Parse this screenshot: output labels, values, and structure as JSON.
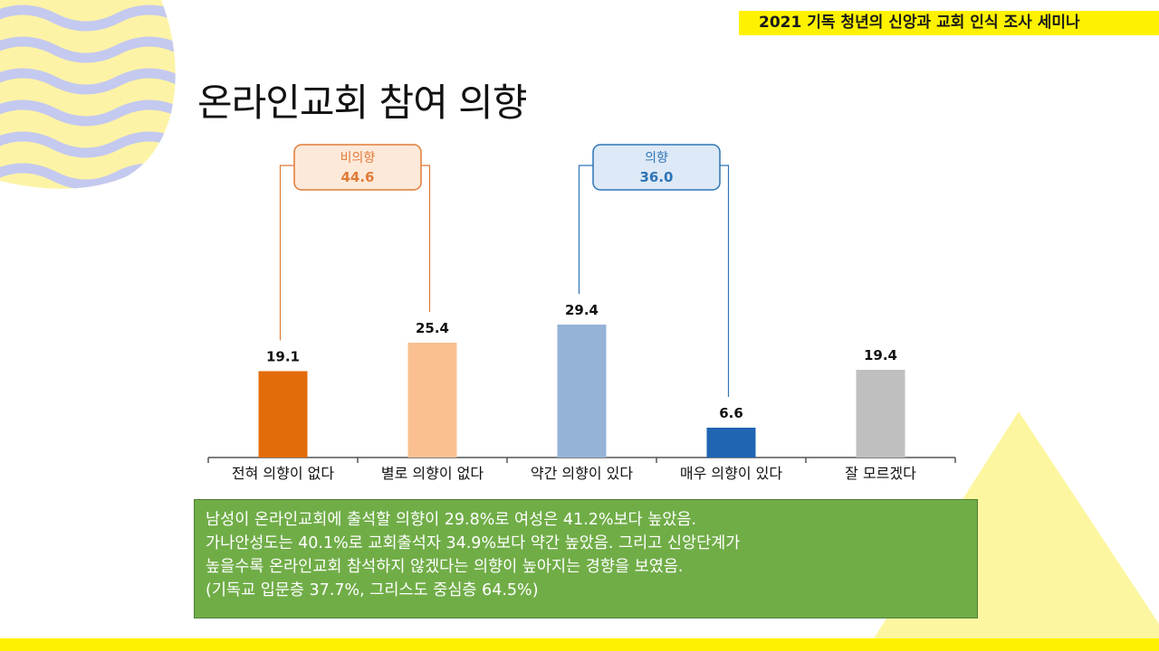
{
  "header": {
    "tag": "2021 기독 청년의 신앙과 교회 인식 조사 세미나"
  },
  "slide": {
    "title": "온라인교회 참여 의향"
  },
  "colors": {
    "accent_yellow": "#fff200",
    "bar_colors": [
      "#e36c0a",
      "#fac090",
      "#95b3d7",
      "#1f65b2",
      "#bfbfbf"
    ],
    "group_nonintent": "#e07b39",
    "group_intent": "#2e75b6",
    "note_bg": "#70ad47"
  },
  "chart_data": {
    "type": "bar",
    "title": "",
    "xlabel": "",
    "ylabel": "",
    "categories": [
      "전혀 의향이 없다",
      "별로 의향이 없다",
      "약간 의향이 있다",
      "매우 의향이 있다",
      "잘 모르겠다"
    ],
    "values": [
      19.1,
      25.4,
      29.4,
      6.6,
      19.4
    ],
    "value_labels": [
      "19.1",
      "25.4",
      "29.4",
      "6.6",
      "19.4"
    ],
    "ylim": [
      0,
      30
    ],
    "grid": false,
    "groups": [
      {
        "label": "비의향",
        "value": "44.6",
        "members": [
          0,
          1
        ]
      },
      {
        "label": "의향",
        "value": "36.0",
        "members": [
          2,
          3
        ]
      }
    ]
  },
  "note": {
    "lines": [
      "남성이 온라인교회에 출석할 의향이 29.8%로 여성은 41.2%보다 높았음.",
      "가나안성도는 40.1%로 교회출석자 34.9%보다 약간 높았음. 그리고 신앙단계가",
      "높을수록 온라인교회 참석하지 않겠다는 의향이 높아지는 경향을 보였음.",
      "(기독교 입문층 37.7%, 그리스도 중심층 64.5%)"
    ]
  }
}
